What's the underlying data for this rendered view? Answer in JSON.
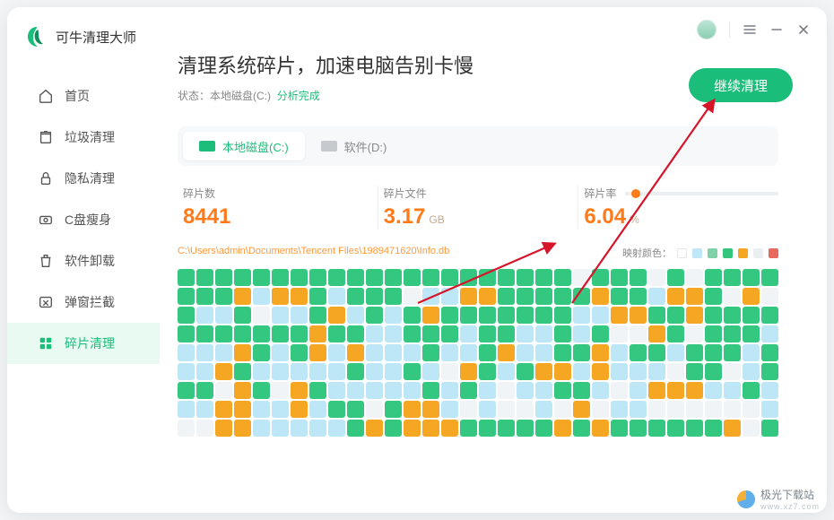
{
  "app": {
    "name": "可牛清理大师",
    "logo_colors": {
      "outer": "#1bbd7a",
      "inner": "#0f8f5a"
    }
  },
  "sidebar": {
    "items": [
      {
        "key": "home",
        "label": "首页",
        "active": false
      },
      {
        "key": "junk",
        "label": "垃圾清理",
        "active": false
      },
      {
        "key": "privacy",
        "label": "隐私清理",
        "active": false
      },
      {
        "key": "slim",
        "label": "C盘瘦身",
        "active": false
      },
      {
        "key": "uninstall",
        "label": "软件卸载",
        "active": false
      },
      {
        "key": "popup",
        "label": "弹窗拦截",
        "active": false
      },
      {
        "key": "defrag",
        "label": "碎片清理",
        "active": true
      }
    ]
  },
  "titlebar": {
    "avatar": true,
    "menu_name": "menu-icon",
    "minimize_name": "minimize-icon",
    "close_name": "close-icon"
  },
  "headline": "清理系统碎片，加速电脑告别卡慢",
  "status": {
    "prefix": "状态：",
    "disk": "本地磁盘(C:)",
    "result": "分析完成"
  },
  "cta_label": "继续清理",
  "tabs": [
    {
      "label": "本地磁盘(C:)",
      "active": true,
      "icon_color": "green"
    },
    {
      "label": "软件(D:)",
      "active": false,
      "icon_color": "grey"
    }
  ],
  "metrics": {
    "count": {
      "label": "碎片数",
      "value": "8441",
      "unit": ""
    },
    "files": {
      "label": "碎片文件",
      "value": "3.17",
      "unit": "GB"
    },
    "rate": {
      "label": "碎片率",
      "value": "6.04",
      "unit": "%",
      "percent": 6.04
    }
  },
  "path": "C:\\Users\\admin\\Documents\\Tencent Files\\1989471620\\Info.db",
  "legend": {
    "label": "映射颜色：",
    "swatches": [
      "#ffffff",
      "#bfe7f7",
      "#7fd1a8",
      "#34c77b",
      "#f5a623",
      "#eceff1",
      "#e86a5e"
    ]
  },
  "grid": {
    "cols": 32,
    "rows": 9,
    "palette": {
      "g": "#34c780",
      "b": "#bde6f6",
      "o": "#f5a623",
      "w": "#f1f4f6"
    },
    "cells": "gggggggggggggggggggggwgggwgwgggggggoboogbgggwbboogggggoggboogwowgbbgwbbgobgbgogggggggbbooggogggggggggggoggbbgggbggbbgbgwwogwgggbbbbogbgobobbbgbbgobbggobggbgggbgbbogbbbbbgbbgbwogbgoobobbbwggwbgggwogwogbbbbbgbgbwbbggbwbooobbgbbboobbobggwgoobwbwwbwowbbwwwwwwbwwoobbbbbgogooogggggogoggggggowgowgggg"
  },
  "watermark": {
    "name": "极光下载站",
    "url": "www.xz7.com"
  },
  "colors": {
    "brand": "#1bbd7a",
    "accent_orange": "#ff7b1a",
    "bg": "#ffffff",
    "panel": "#f6f8fa"
  }
}
